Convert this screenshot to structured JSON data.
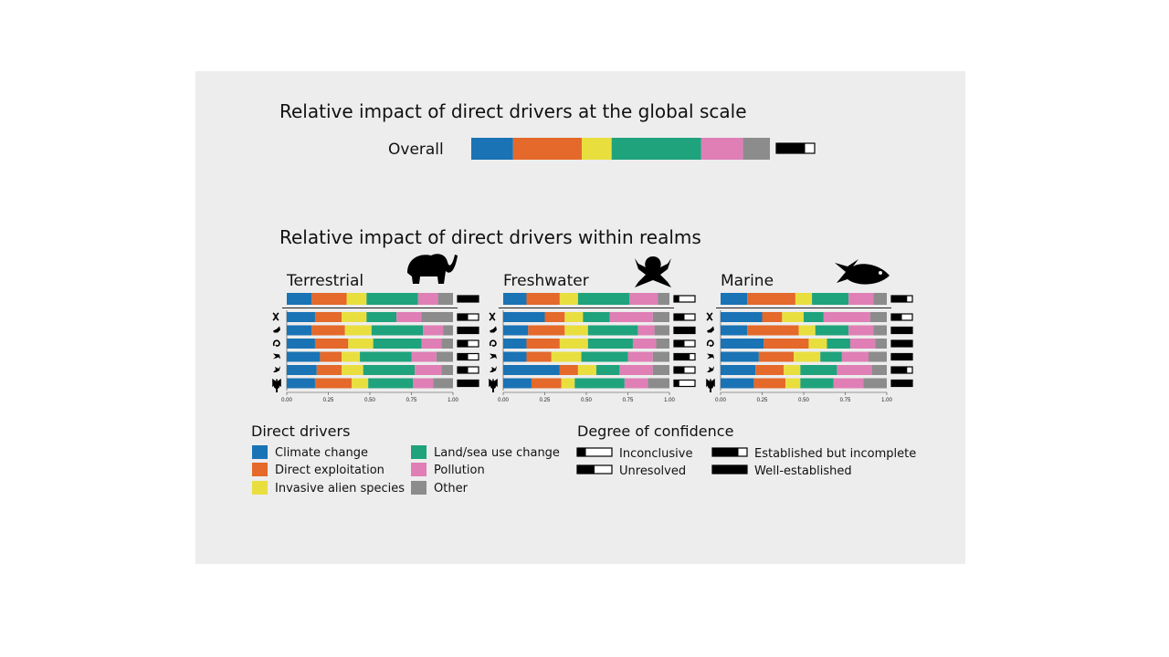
{
  "colors": {
    "Climate change": "#1a73b5",
    "Direct exploitation": "#e4692a",
    "Invasive alien species": "#e8df3f",
    "Land/sea use change": "#1fa37c",
    "Pollution": "#df7fb6",
    "Other": "#8c8c8c",
    "background": "#ededed"
  },
  "overall": {
    "title": "Relative impact of direct drivers at the global scale",
    "label": "Overall",
    "values": [
      0.14,
      0.23,
      0.1,
      0.3,
      0.14,
      0.09
    ],
    "confidence": 0.75
  },
  "realms_title": "Relative impact of direct drivers within realms",
  "realm_icons": [
    "elephant-icon",
    "frog-icon",
    "fish-icon"
  ],
  "row_icons": [
    "dna-icon",
    "bird-icon",
    "snake-icon",
    "frog-small-icon",
    "lizard-icon",
    "butterfly-icon",
    "tree-icon"
  ],
  "chart_data": [
    {
      "type": "bar",
      "title": "Terrestrial",
      "orientation": "horizontal",
      "stacked": true,
      "xlim": [
        0,
        1
      ],
      "xticks": [
        "0.00",
        "0.25",
        "0.50",
        "0.75",
        "1.00"
      ],
      "series_names": [
        "Climate change",
        "Direct exploitation",
        "Invasive alien species",
        "Land/sea use change",
        "Pollution",
        "Other"
      ],
      "summary": {
        "values": [
          0.15,
          0.21,
          0.12,
          0.31,
          0.12,
          0.09
        ],
        "confidence": 1.0
      },
      "rows": [
        {
          "values": [
            0.17,
            0.16,
            0.15,
            0.18,
            0.15,
            0.19
          ],
          "confidence": 0.5
        },
        {
          "values": [
            0.15,
            0.2,
            0.16,
            0.31,
            0.12,
            0.06
          ],
          "confidence": 1.0
        },
        {
          "values": [
            0.17,
            0.2,
            0.15,
            0.29,
            0.12,
            0.07
          ],
          "confidence": 0.5
        },
        {
          "values": [
            0.2,
            0.13,
            0.11,
            0.31,
            0.15,
            0.1
          ],
          "confidence": 0.5
        },
        {
          "values": [
            0.18,
            0.15,
            0.13,
            0.31,
            0.16,
            0.07
          ],
          "confidence": 0.5
        },
        {
          "values": [
            0.17,
            0.22,
            0.1,
            0.27,
            0.12,
            0.12
          ],
          "confidence": 1.0
        }
      ]
    },
    {
      "type": "bar",
      "title": "Freshwater",
      "orientation": "horizontal",
      "stacked": true,
      "xlim": [
        0,
        1
      ],
      "xticks": [
        "0.00",
        "0.25",
        "0.50",
        "0.75",
        "1.00"
      ],
      "series_names": [
        "Climate change",
        "Direct exploitation",
        "Invasive alien species",
        "Land/sea use change",
        "Pollution",
        "Other"
      ],
      "summary": {
        "values": [
          0.14,
          0.2,
          0.11,
          0.31,
          0.17,
          0.07
        ],
        "confidence": 0.25
      },
      "rows": [
        {
          "values": [
            0.25,
            0.12,
            0.11,
            0.16,
            0.26,
            0.1
          ],
          "confidence": 0.5
        },
        {
          "values": [
            0.15,
            0.22,
            0.14,
            0.3,
            0.1,
            0.09
          ],
          "confidence": 1.0
        },
        {
          "values": [
            0.14,
            0.2,
            0.17,
            0.27,
            0.14,
            0.08
          ],
          "confidence": 0.5
        },
        {
          "values": [
            0.14,
            0.15,
            0.18,
            0.28,
            0.15,
            0.1
          ],
          "confidence": 0.75
        },
        {
          "values": [
            0.34,
            0.11,
            0.11,
            0.14,
            0.2,
            0.1
          ],
          "confidence": 0.5
        },
        {
          "values": [
            0.17,
            0.18,
            0.08,
            0.3,
            0.14,
            0.13
          ],
          "confidence": 0.25
        }
      ]
    },
    {
      "type": "bar",
      "title": "Marine",
      "orientation": "horizontal",
      "stacked": true,
      "xlim": [
        0,
        1
      ],
      "xticks": [
        "0.00",
        "0.25",
        "0.50",
        "0.75",
        "1.00"
      ],
      "series_names": [
        "Climate change",
        "Direct exploitation",
        "Invasive alien species",
        "Land/sea use change",
        "Pollution",
        "Other"
      ],
      "summary": {
        "values": [
          0.16,
          0.29,
          0.1,
          0.22,
          0.15,
          0.08
        ],
        "confidence": 0.75
      },
      "rows": [
        {
          "values": [
            0.25,
            0.12,
            0.13,
            0.12,
            0.28,
            0.1
          ],
          "confidence": 0.5
        },
        {
          "values": [
            0.16,
            0.31,
            0.1,
            0.2,
            0.15,
            0.08
          ],
          "confidence": 1.0
        },
        {
          "values": [
            0.26,
            0.27,
            0.11,
            0.14,
            0.15,
            0.07
          ],
          "confidence": 1.0
        },
        {
          "values": [
            0.23,
            0.21,
            0.16,
            0.13,
            0.16,
            0.11
          ],
          "confidence": 1.0
        },
        {
          "values": [
            0.21,
            0.17,
            0.1,
            0.22,
            0.21,
            0.09
          ],
          "confidence": 0.75
        },
        {
          "values": [
            0.2,
            0.19,
            0.09,
            0.2,
            0.18,
            0.14
          ],
          "confidence": 1.0
        }
      ]
    }
  ],
  "legend": {
    "drivers_title": "Direct drivers",
    "drivers": [
      "Climate change",
      "Direct exploitation",
      "Invasive alien species",
      "Land/sea use change",
      "Pollution",
      "Other"
    ],
    "confidence_title": "Degree of confidence",
    "confidence": [
      {
        "label": "Inconclusive",
        "level": 0.25
      },
      {
        "label": "Unresolved",
        "level": 0.5
      },
      {
        "label": "Established but incomplete",
        "level": 0.75
      },
      {
        "label": "Well-established",
        "level": 1.0
      }
    ]
  }
}
